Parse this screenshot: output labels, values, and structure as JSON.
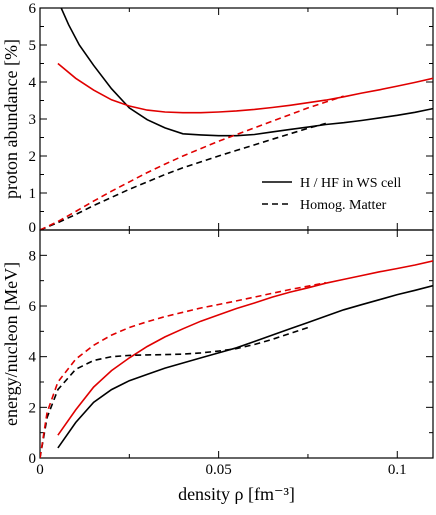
{
  "chart_data": [
    {
      "type": "line",
      "ylabel": "proton abundance [%]",
      "xlim": [
        0,
        0.11
      ],
      "ylim": [
        0,
        6
      ],
      "xticks": [
        0,
        0.05,
        0.1
      ],
      "xtick_labels": [
        "",
        "",
        ""
      ],
      "yticks": [
        0,
        1,
        2,
        3,
        4,
        5,
        6
      ],
      "ytick_labels": [
        "0",
        "1",
        "2",
        "3",
        "4",
        "5",
        "6"
      ],
      "legend": {
        "position": "right",
        "entries": [
          {
            "label": "H / HF in WS cell",
            "style": "solid"
          },
          {
            "label": "Homog. Matter",
            "style": "dashed"
          }
        ]
      },
      "series": [
        {
          "style": "solid",
          "color": "#000000",
          "x": [
            0.005,
            0.008,
            0.011,
            0.015,
            0.02,
            0.025,
            0.03,
            0.035,
            0.04,
            0.045,
            0.05,
            0.055,
            0.06,
            0.065,
            0.07,
            0.075,
            0.08,
            0.085,
            0.09,
            0.095,
            0.1,
            0.105,
            0.11
          ],
          "y": [
            6.2,
            5.55,
            5.0,
            4.45,
            3.82,
            3.3,
            2.98,
            2.76,
            2.6,
            2.57,
            2.55,
            2.55,
            2.58,
            2.65,
            2.72,
            2.78,
            2.85,
            2.9,
            2.96,
            3.03,
            3.1,
            3.18,
            3.28
          ]
        },
        {
          "style": "solid",
          "color": "#e00000",
          "x": [
            0.005,
            0.01,
            0.015,
            0.02,
            0.025,
            0.03,
            0.035,
            0.04,
            0.045,
            0.05,
            0.055,
            0.06,
            0.065,
            0.07,
            0.075,
            0.08,
            0.085,
            0.09,
            0.095,
            0.1,
            0.105,
            0.11
          ],
          "y": [
            4.5,
            4.1,
            3.78,
            3.52,
            3.35,
            3.24,
            3.19,
            3.17,
            3.17,
            3.19,
            3.22,
            3.26,
            3.31,
            3.37,
            3.44,
            3.51,
            3.6,
            3.7,
            3.79,
            3.89,
            3.99,
            4.1
          ]
        },
        {
          "style": "dashed",
          "color": "#000000",
          "x": [
            0.0,
            0.005,
            0.01,
            0.015,
            0.02,
            0.025,
            0.03,
            0.035,
            0.04,
            0.045,
            0.05,
            0.055,
            0.06,
            0.065,
            0.07,
            0.075,
            0.08
          ],
          "y": [
            0.0,
            0.2,
            0.42,
            0.66,
            0.88,
            1.1,
            1.3,
            1.5,
            1.68,
            1.84,
            2.0,
            2.15,
            2.3,
            2.45,
            2.6,
            2.75,
            2.88
          ]
        },
        {
          "style": "dashed",
          "color": "#e00000",
          "x": [
            0.0,
            0.005,
            0.01,
            0.015,
            0.02,
            0.025,
            0.03,
            0.035,
            0.04,
            0.045,
            0.05,
            0.055,
            0.06,
            0.065,
            0.07,
            0.075,
            0.08,
            0.085
          ],
          "y": [
            0.0,
            0.23,
            0.5,
            0.78,
            1.05,
            1.3,
            1.55,
            1.78,
            2.0,
            2.2,
            2.4,
            2.58,
            2.76,
            2.94,
            3.12,
            3.3,
            3.46,
            3.62
          ]
        }
      ]
    },
    {
      "type": "line",
      "xlabel": "density ρ [fm⁻³]",
      "ylabel": "energy/nucleon [MeV]",
      "xlim": [
        0,
        0.11
      ],
      "ylim": [
        0,
        9
      ],
      "xticks": [
        0,
        0.05,
        0.1
      ],
      "xtick_labels": [
        "0",
        "0.05",
        "0.1"
      ],
      "yticks": [
        0,
        2,
        4,
        6,
        8
      ],
      "ytick_labels": [
        "0",
        "2",
        "4",
        "6",
        "8"
      ],
      "series": [
        {
          "style": "solid",
          "color": "#000000",
          "x": [
            0.005,
            0.01,
            0.015,
            0.02,
            0.025,
            0.03,
            0.035,
            0.04,
            0.045,
            0.05,
            0.055,
            0.06,
            0.065,
            0.07,
            0.075,
            0.08,
            0.085,
            0.09,
            0.095,
            0.1,
            0.105,
            0.11
          ],
          "y": [
            0.4,
            1.4,
            2.2,
            2.7,
            3.05,
            3.3,
            3.55,
            3.75,
            3.95,
            4.15,
            4.35,
            4.6,
            4.85,
            5.1,
            5.35,
            5.6,
            5.85,
            6.05,
            6.25,
            6.45,
            6.62,
            6.8
          ]
        },
        {
          "style": "solid",
          "color": "#e00000",
          "x": [
            0.005,
            0.01,
            0.015,
            0.02,
            0.025,
            0.03,
            0.035,
            0.04,
            0.045,
            0.05,
            0.055,
            0.06,
            0.065,
            0.07,
            0.075,
            0.08,
            0.085,
            0.09,
            0.095,
            0.1,
            0.105,
            0.11
          ],
          "y": [
            0.9,
            1.9,
            2.8,
            3.45,
            3.95,
            4.4,
            4.78,
            5.1,
            5.4,
            5.65,
            5.9,
            6.12,
            6.35,
            6.55,
            6.72,
            6.9,
            7.05,
            7.2,
            7.35,
            7.48,
            7.62,
            7.78
          ]
        },
        {
          "style": "dashed",
          "color": "#000000",
          "x": [
            0.0,
            0.002,
            0.005,
            0.01,
            0.015,
            0.02,
            0.025,
            0.03,
            0.035,
            0.04,
            0.045,
            0.05,
            0.055,
            0.06,
            0.065,
            0.07,
            0.075
          ],
          "y": [
            0.0,
            1.6,
            2.7,
            3.5,
            3.85,
            4.0,
            4.05,
            4.07,
            4.08,
            4.1,
            4.15,
            4.22,
            4.32,
            4.48,
            4.68,
            4.92,
            5.15
          ]
        },
        {
          "style": "dashed",
          "color": "#e00000",
          "x": [
            0.0,
            0.002,
            0.005,
            0.01,
            0.015,
            0.02,
            0.025,
            0.03,
            0.035,
            0.04,
            0.045,
            0.05,
            0.055,
            0.06,
            0.065,
            0.07,
            0.075,
            0.08
          ],
          "y": [
            0.0,
            1.8,
            3.0,
            3.9,
            4.45,
            4.85,
            5.15,
            5.38,
            5.58,
            5.75,
            5.92,
            6.06,
            6.2,
            6.35,
            6.5,
            6.65,
            6.78,
            6.92
          ]
        }
      ]
    }
  ]
}
